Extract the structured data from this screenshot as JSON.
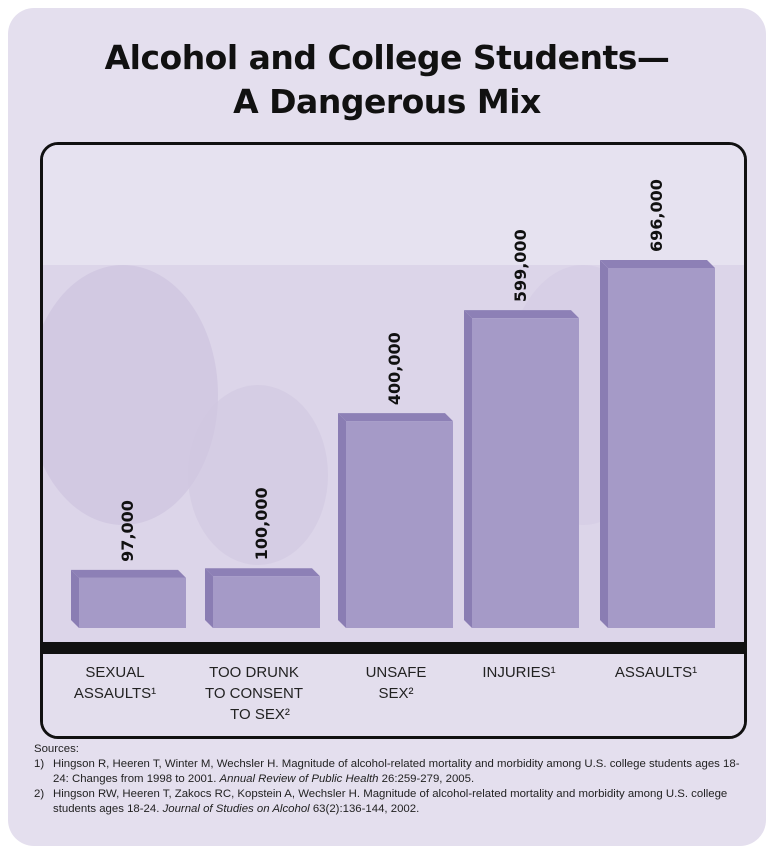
{
  "title_lines": [
    "Alcohol and College Students—",
    "A Dangerous Mix"
  ],
  "chart_data": {
    "type": "bar",
    "title": "Alcohol and College Students—A Dangerous Mix",
    "categories": [
      {
        "label_lines": [
          "SEXUAL",
          "ASSAULTS¹"
        ]
      },
      {
        "label_lines": [
          "TOO DRUNK",
          "TO CONSENT",
          "TO SEX²"
        ]
      },
      {
        "label_lines": [
          "UNSAFE",
          "SEX²"
        ]
      },
      {
        "label_lines": [
          "INJURIES¹"
        ]
      },
      {
        "label_lines": [
          "ASSAULTS¹"
        ]
      }
    ],
    "values": [
      97000,
      100000,
      400000,
      599000,
      696000
    ],
    "value_labels": [
      "97,000",
      "100,000",
      "400,000",
      "599,000",
      "696,000"
    ],
    "ylim": [
      0,
      800000
    ],
    "bar_color": "#a59ac7",
    "bar_top_color": "#8d80b6",
    "bar_side_color": "#8a7db3"
  },
  "sources": {
    "heading": "Sources:",
    "items": [
      {
        "num": "1)",
        "text": "Hingson R, Heeren T, Winter M, Wechsler H. Magnitude of alcohol-related mortality and morbidity among U.S. college students ages 18-24: Changes from 1998 to 2001. ",
        "journal": "Annual Review of Public Health",
        "tail": " 26:259-279, 2005."
      },
      {
        "num": "2)",
        "text": "Hingson RW, Heeren T, Zakocs RC, Kopstein A, Wechsler H. Magnitude of alcohol-related mortality and morbidity among U.S. college students ages 18-24. ",
        "journal": "Journal of Studies on Alcohol",
        "tail": " 63(2):136-144, 2002."
      }
    ]
  }
}
